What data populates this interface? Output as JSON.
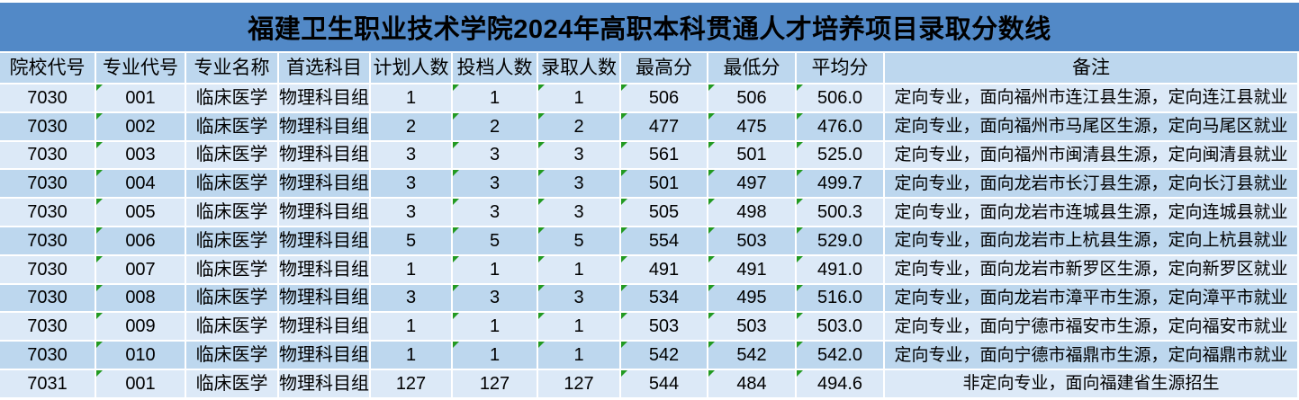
{
  "title": "福建卫生职业技术学院2024年高职本科贯通人才培养项目录取分数线",
  "colors": {
    "title_bg": "#5289C7",
    "header_bg": "#BDD7EE",
    "row_light": "#DCE9F7",
    "row_dark": "#BDD7EE",
    "gridline": "#FFFFFF",
    "text": "#000000",
    "flag_green": "#229A22"
  },
  "table": {
    "columns": [
      "院校代号",
      "专业代号",
      "专业名称",
      "首选科目",
      "计划人数",
      "投档人数",
      "录取人数",
      "最高分",
      "最低分",
      "平均分",
      "备注"
    ],
    "rows": [
      {
        "cells": [
          "7030",
          "001",
          "临床医学",
          "物理科目组",
          "1",
          "1",
          "1",
          "506",
          "506",
          "506.0",
          "定向专业，面向福州市连江县生源，定向连江县就业"
        ],
        "flags": [
          1,
          5,
          6,
          7,
          8,
          9
        ]
      },
      {
        "cells": [
          "7030",
          "002",
          "临床医学",
          "物理科目组",
          "2",
          "2",
          "2",
          "477",
          "475",
          "476.0",
          "定向专业，面向福州市马尾区生源，定向马尾区就业"
        ],
        "flags": [
          1,
          5,
          6,
          7,
          8,
          9
        ]
      },
      {
        "cells": [
          "7030",
          "003",
          "临床医学",
          "物理科目组",
          "3",
          "3",
          "3",
          "561",
          "501",
          "525.0",
          "定向专业，面向福州市闽清县生源，定向闽清县就业"
        ],
        "flags": [
          1,
          5,
          6,
          7,
          8,
          9
        ]
      },
      {
        "cells": [
          "7030",
          "004",
          "临床医学",
          "物理科目组",
          "3",
          "3",
          "3",
          "501",
          "497",
          "499.7",
          "定向专业，面向龙岩市长汀县生源，定向长汀县就业"
        ],
        "flags": [
          1,
          5,
          6,
          7,
          8,
          9
        ]
      },
      {
        "cells": [
          "7030",
          "005",
          "临床医学",
          "物理科目组",
          "3",
          "3",
          "3",
          "505",
          "498",
          "500.3",
          "定向专业，面向龙岩市连城县生源，定向连城县就业"
        ],
        "flags": [
          1,
          5,
          6,
          7,
          8,
          9
        ]
      },
      {
        "cells": [
          "7030",
          "006",
          "临床医学",
          "物理科目组",
          "5",
          "5",
          "5",
          "554",
          "503",
          "529.0",
          "定向专业，面向龙岩市上杭县生源，定向上杭县就业"
        ],
        "flags": [
          1,
          5,
          6,
          7,
          8,
          9
        ]
      },
      {
        "cells": [
          "7030",
          "007",
          "临床医学",
          "物理科目组",
          "1",
          "1",
          "1",
          "491",
          "491",
          "491.0",
          "定向专业，面向龙岩市新罗区生源，定向新罗区就业"
        ],
        "flags": [
          1,
          5,
          6,
          7,
          8,
          9
        ]
      },
      {
        "cells": [
          "7030",
          "008",
          "临床医学",
          "物理科目组",
          "3",
          "3",
          "3",
          "534",
          "495",
          "516.0",
          "定向专业，面向龙岩市漳平市生源，定向漳平市就业"
        ],
        "flags": [
          1,
          5,
          6,
          7,
          8,
          9
        ]
      },
      {
        "cells": [
          "7030",
          "009",
          "临床医学",
          "物理科目组",
          "1",
          "1",
          "1",
          "503",
          "503",
          "503.0",
          "定向专业，面向宁德市福安市生源，定向福安市就业"
        ],
        "flags": [
          1,
          5,
          6,
          7,
          8,
          9
        ]
      },
      {
        "cells": [
          "7030",
          "010",
          "临床医学",
          "物理科目组",
          "1",
          "1",
          "1",
          "542",
          "542",
          "542.0",
          "定向专业，面向宁德市福鼎市生源，定向福鼎市就业"
        ],
        "flags": [
          1,
          5,
          6,
          7,
          8,
          9
        ]
      },
      {
        "cells": [
          "7031",
          "001",
          "临床医学",
          "物理科目组",
          "127",
          "127",
          "127",
          "544",
          "484",
          "494.6",
          "非定向专业，面向福建省生源招生"
        ],
        "flags": [
          1,
          7,
          8,
          9
        ]
      }
    ]
  }
}
